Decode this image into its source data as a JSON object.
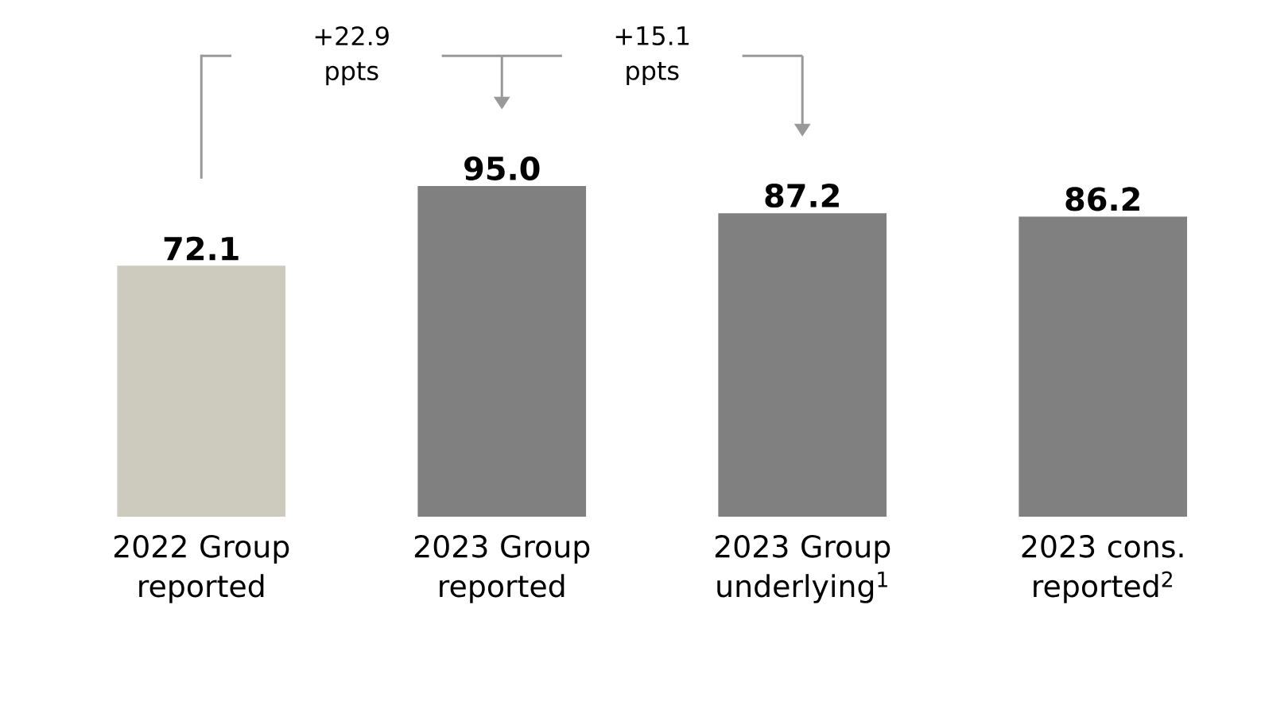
{
  "chart_data": {
    "type": "bar",
    "categories": [
      "2022 Group reported",
      "2023 Group reported",
      "2023 Group underlying$^{1}$",
      "2023 cons. reported$^{2}$"
    ],
    "values": [
      72.1,
      95.0,
      87.2,
      86.2
    ],
    "colors": [
      "#cccbbd",
      "#808080",
      "#808080",
      "#808080"
    ],
    "value_labels": [
      "72.1",
      "95.0",
      "87.2",
      "86.2"
    ],
    "annotations": [
      "+22.9 ppts",
      "+15.1 ppts"
    ]
  }
}
